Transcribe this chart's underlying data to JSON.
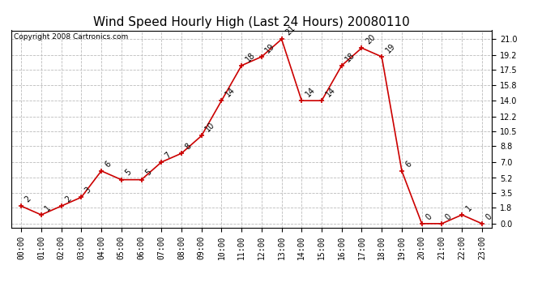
{
  "title": "Wind Speed Hourly High (Last 24 Hours) 20080110",
  "copyright": "Copyright 2008 Cartronics.com",
  "hours": [
    "00:00",
    "01:00",
    "02:00",
    "03:00",
    "04:00",
    "05:00",
    "06:00",
    "07:00",
    "08:00",
    "09:00",
    "10:00",
    "11:00",
    "12:00",
    "13:00",
    "14:00",
    "15:00",
    "16:00",
    "17:00",
    "18:00",
    "19:00",
    "20:00",
    "21:00",
    "22:00",
    "23:00"
  ],
  "values": [
    2,
    1,
    2,
    3,
    6,
    5,
    5,
    7,
    8,
    10,
    14,
    18,
    19,
    21,
    14,
    14,
    18,
    20,
    19,
    6,
    0,
    0,
    1,
    0
  ],
  "line_color": "#cc0000",
  "marker_color": "#cc0000",
  "bg_color": "#ffffff",
  "grid_color": "#bbbbbb",
  "yticks": [
    0.0,
    1.8,
    3.5,
    5.2,
    7.0,
    8.8,
    10.5,
    12.2,
    14.0,
    15.8,
    17.5,
    19.2,
    21.0
  ],
  "ylim": [
    -0.5,
    22.0
  ],
  "title_fontsize": 11,
  "label_fontsize": 7,
  "copyright_fontsize": 6.5,
  "annotation_fontsize": 7
}
